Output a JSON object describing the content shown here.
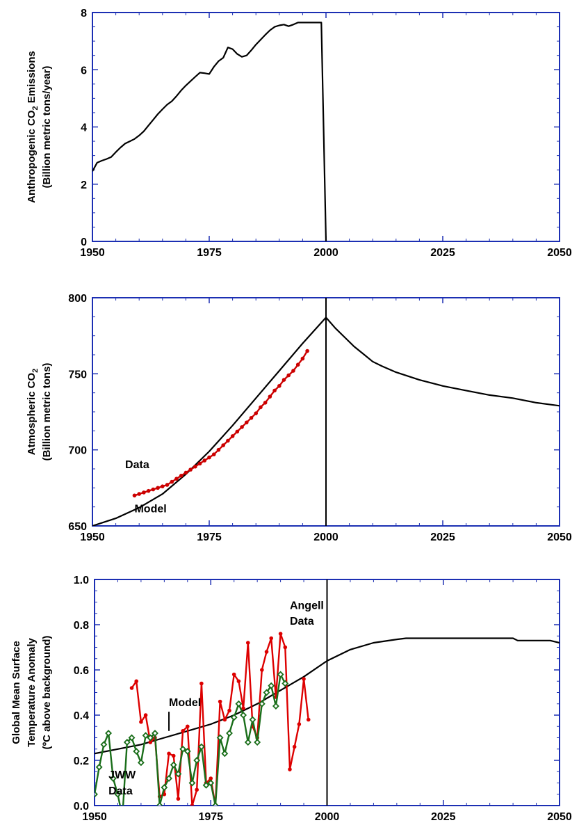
{
  "chart_data": [
    {
      "type": "line",
      "xlabel": "",
      "ylabel_lines": [
        "Anthropogenic CO2 Emissions",
        "(Billion metric tons/year)"
      ],
      "xlim": [
        1950,
        2050
      ],
      "ylim": [
        0,
        8
      ],
      "xticks": [
        "1950",
        "1975",
        "2000",
        "2025",
        "2050"
      ],
      "yticks": [
        "0",
        "2",
        "4",
        "6",
        "8"
      ],
      "series": [
        {
          "color": "#000000",
          "points": [
            [
              1950,
              2.45
            ],
            [
              1951,
              2.75
            ],
            [
              1952,
              2.82
            ],
            [
              1953,
              2.88
            ],
            [
              1954,
              2.95
            ],
            [
              1955,
              3.12
            ],
            [
              1956,
              3.28
            ],
            [
              1957,
              3.42
            ],
            [
              1958,
              3.5
            ],
            [
              1959,
              3.58
            ],
            [
              1960,
              3.7
            ],
            [
              1961,
              3.85
            ],
            [
              1962,
              4.05
            ],
            [
              1963,
              4.25
            ],
            [
              1964,
              4.45
            ],
            [
              1965,
              4.62
            ],
            [
              1966,
              4.78
            ],
            [
              1967,
              4.9
            ],
            [
              1968,
              5.08
            ],
            [
              1969,
              5.28
            ],
            [
              1970,
              5.45
            ],
            [
              1971,
              5.6
            ],
            [
              1972,
              5.75
            ],
            [
              1973,
              5.9
            ],
            [
              1974,
              5.88
            ],
            [
              1975,
              5.85
            ],
            [
              1976,
              6.1
            ],
            [
              1977,
              6.3
            ],
            [
              1978,
              6.42
            ],
            [
              1979,
              6.78
            ],
            [
              1980,
              6.72
            ],
            [
              1981,
              6.55
            ],
            [
              1982,
              6.45
            ],
            [
              1983,
              6.5
            ],
            [
              1984,
              6.68
            ],
            [
              1985,
              6.88
            ],
            [
              1986,
              7.05
            ],
            [
              1987,
              7.22
            ],
            [
              1988,
              7.38
            ],
            [
              1989,
              7.5
            ],
            [
              1990,
              7.55
            ],
            [
              1991,
              7.58
            ],
            [
              1992,
              7.52
            ],
            [
              1993,
              7.58
            ],
            [
              1994,
              7.65
            ],
            [
              1995,
              7.65
            ],
            [
              1996,
              7.65
            ],
            [
              1997,
              7.65
            ],
            [
              1998,
              7.65
            ],
            [
              1999,
              7.65
            ],
            [
              2000,
              0
            ]
          ]
        }
      ],
      "annotations": []
    },
    {
      "type": "line",
      "xlabel": "",
      "ylabel_lines": [
        "Atmospheric CO2",
        "(Billion metric tons)"
      ],
      "xlim": [
        1950,
        2050
      ],
      "ylim": [
        650,
        800
      ],
      "xticks": [
        "1950",
        "1975",
        "2000",
        "2025",
        "2050"
      ],
      "yticks": [
        "650",
        "700",
        "750",
        "800"
      ],
      "vline": 2000,
      "series": [
        {
          "name": "Model",
          "color": "#000000",
          "points": [
            [
              1950,
              650
            ],
            [
              1955,
              655
            ],
            [
              1960,
              662
            ],
            [
              1965,
              671
            ],
            [
              1970,
              684
            ],
            [
              1975,
              699
            ],
            [
              1980,
              716
            ],
            [
              1985,
              734
            ],
            [
              1990,
              752
            ],
            [
              1995,
              770
            ],
            [
              2000,
              787
            ],
            [
              2002,
              780
            ],
            [
              2004,
              774
            ],
            [
              2006,
              768
            ],
            [
              2008,
              763
            ],
            [
              2010,
              758
            ],
            [
              2012,
              755
            ],
            [
              2015,
              751
            ],
            [
              2020,
              746
            ],
            [
              2025,
              742
            ],
            [
              2030,
              739
            ],
            [
              2035,
              736
            ],
            [
              2040,
              734
            ],
            [
              2045,
              731
            ],
            [
              2050,
              729
            ]
          ]
        },
        {
          "name": "Data",
          "color": "#cc0000",
          "marker": true,
          "points": [
            [
              1959,
              670
            ],
            [
              1960,
              671
            ],
            [
              1961,
              672
            ],
            [
              1962,
              673
            ],
            [
              1963,
              674
            ],
            [
              1964,
              675
            ],
            [
              1965,
              676
            ],
            [
              1966,
              677
            ],
            [
              1967,
              679
            ],
            [
              1968,
              681
            ],
            [
              1969,
              683
            ],
            [
              1970,
              685
            ],
            [
              1971,
              687
            ],
            [
              1972,
              689
            ],
            [
              1973,
              691
            ],
            [
              1974,
              693
            ],
            [
              1975,
              695
            ],
            [
              1976,
              697
            ],
            [
              1977,
              700
            ],
            [
              1978,
              703
            ],
            [
              1979,
              706
            ],
            [
              1980,
              709
            ],
            [
              1981,
              712
            ],
            [
              1982,
              715
            ],
            [
              1983,
              718
            ],
            [
              1984,
              721
            ],
            [
              1985,
              724
            ],
            [
              1986,
              728
            ],
            [
              1987,
              731
            ],
            [
              1988,
              735
            ],
            [
              1989,
              739
            ],
            [
              1990,
              742
            ],
            [
              1991,
              746
            ],
            [
              1992,
              749
            ],
            [
              1993,
              752
            ],
            [
              1994,
              756
            ],
            [
              1995,
              760
            ],
            [
              1996,
              765
            ]
          ]
        }
      ],
      "annotations": [
        {
          "text": "Data",
          "x": 1957,
          "y": 688
        },
        {
          "text": "Model",
          "x": 1959,
          "y": 659
        }
      ]
    },
    {
      "type": "line",
      "xlabel": "",
      "ylabel_lines": [
        "Global Mean Surface",
        "Temperature Anomaly",
        "(ºC above background)"
      ],
      "xlim": [
        1950,
        2050
      ],
      "ylim": [
        0,
        1
      ],
      "xticks": [
        "1950",
        "1975",
        "2000",
        "2025",
        "2050"
      ],
      "yticks": [
        "0.0",
        "0.2",
        "0.4",
        "0.6",
        "0.8",
        "1.0"
      ],
      "vline": 2000,
      "series": [
        {
          "name": "Model",
          "color": "#000000",
          "points": [
            [
              1950,
              0.23
            ],
            [
              1955,
              0.25
            ],
            [
              1960,
              0.27
            ],
            [
              1965,
              0.3
            ],
            [
              1970,
              0.33
            ],
            [
              1975,
              0.36
            ],
            [
              1980,
              0.4
            ],
            [
              1985,
              0.45
            ],
            [
              1990,
              0.51
            ],
            [
              1995,
              0.57
            ],
            [
              2000,
              0.64
            ],
            [
              2005,
              0.69
            ],
            [
              2010,
              0.72
            ],
            [
              2015,
              0.735
            ],
            [
              2017,
              0.74
            ],
            [
              2025,
              0.74
            ],
            [
              2030,
              0.74
            ],
            [
              2040,
              0.74
            ],
            [
              2041,
              0.73
            ],
            [
              2048,
              0.73
            ],
            [
              2050,
              0.72
            ]
          ]
        },
        {
          "name": "Angell Data",
          "color": "#dd0000",
          "marker": true,
          "points": [
            [
              1958,
              0.52
            ],
            [
              1959,
              0.55
            ],
            [
              1960,
              0.37
            ],
            [
              1961,
              0.4
            ],
            [
              1962,
              0.28
            ],
            [
              1963,
              0.3
            ],
            [
              1964,
              0.04
            ],
            [
              1965,
              0.05
            ],
            [
              1966,
              0.23
            ],
            [
              1967,
              0.22
            ],
            [
              1968,
              0.03
            ],
            [
              1969,
              0.33
            ],
            [
              1970,
              0.35
            ],
            [
              1971,
              0.0
            ],
            [
              1972,
              0.07
            ],
            [
              1973,
              0.54
            ],
            [
              1974,
              0.1
            ],
            [
              1975,
              0.12
            ],
            [
              1976,
              0.0
            ],
            [
              1977,
              0.46
            ],
            [
              1978,
              0.38
            ],
            [
              1979,
              0.42
            ],
            [
              1980,
              0.58
            ],
            [
              1981,
              0.55
            ],
            [
              1982,
              0.43
            ],
            [
              1983,
              0.72
            ],
            [
              1984,
              0.35
            ],
            [
              1985,
              0.3
            ],
            [
              1986,
              0.6
            ],
            [
              1987,
              0.68
            ],
            [
              1988,
              0.74
            ],
            [
              1989,
              0.48
            ],
            [
              1990,
              0.76
            ],
            [
              1991,
              0.7
            ],
            [
              1992,
              0.16
            ],
            [
              1993,
              0.26
            ],
            [
              1994,
              0.36
            ],
            [
              1995,
              0.56
            ],
            [
              1996,
              0.38
            ]
          ]
        },
        {
          "name": "JWW Data",
          "color": "#1a6e1a",
          "marker": true,
          "points": [
            [
              1950,
              0.05
            ],
            [
              1951,
              0.17
            ],
            [
              1952,
              0.27
            ],
            [
              1953,
              0.32
            ],
            [
              1954,
              0.12
            ],
            [
              1955,
              0.05
            ],
            [
              1956,
              -0.05
            ],
            [
              1957,
              0.28
            ],
            [
              1958,
              0.3
            ],
            [
              1959,
              0.24
            ],
            [
              1960,
              0.19
            ],
            [
              1961,
              0.31
            ],
            [
              1962,
              0.3
            ],
            [
              1963,
              0.32
            ],
            [
              1964,
              0.0
            ],
            [
              1965,
              0.08
            ],
            [
              1966,
              0.12
            ],
            [
              1967,
              0.18
            ],
            [
              1968,
              0.14
            ],
            [
              1969,
              0.25
            ],
            [
              1970,
              0.24
            ],
            [
              1971,
              0.1
            ],
            [
              1972,
              0.2
            ],
            [
              1973,
              0.26
            ],
            [
              1974,
              0.09
            ],
            [
              1975,
              0.1
            ],
            [
              1976,
              0.0
            ],
            [
              1977,
              0.3
            ],
            [
              1978,
              0.23
            ],
            [
              1979,
              0.32
            ],
            [
              1980,
              0.39
            ],
            [
              1981,
              0.45
            ],
            [
              1982,
              0.4
            ],
            [
              1983,
              0.28
            ],
            [
              1984,
              0.38
            ],
            [
              1985,
              0.28
            ],
            [
              1986,
              0.45
            ],
            [
              1987,
              0.5
            ],
            [
              1988,
              0.53
            ],
            [
              1989,
              0.44
            ],
            [
              1990,
              0.58
            ],
            [
              1991,
              0.54
            ]
          ]
        }
      ],
      "annotations": [
        {
          "text": "Angell",
          "x": 1992,
          "y": 0.87
        },
        {
          "text": "Data",
          "x": 1992,
          "y": 0.8
        },
        {
          "text": "Model",
          "x": 1966,
          "y": 0.44
        },
        {
          "text": "JWW",
          "x": 1953,
          "y": 0.12
        },
        {
          "text": "Data",
          "x": 1953,
          "y": 0.05
        }
      ]
    }
  ]
}
